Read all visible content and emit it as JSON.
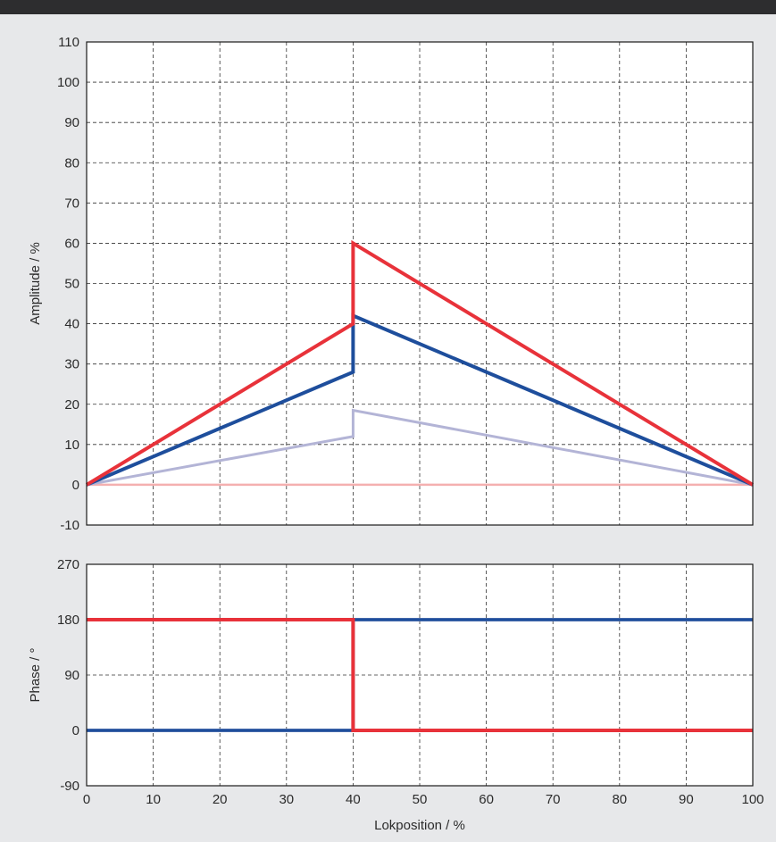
{
  "chart_data": [
    {
      "type": "line",
      "xlabel": "",
      "ylabel": "Amplitude / %",
      "xlim": [
        0,
        100
      ],
      "ylim": [
        -10,
        110
      ],
      "xticks": [
        0,
        10,
        20,
        30,
        40,
        50,
        60,
        70,
        80,
        90,
        100
      ],
      "yticks": [
        -10,
        0,
        10,
        20,
        30,
        40,
        50,
        60,
        70,
        80,
        90,
        100,
        110
      ],
      "grid": true,
      "series": [
        {
          "color": "#f4b0b0",
          "points": [
            [
              0,
              0
            ],
            [
              100,
              0
            ]
          ]
        },
        {
          "color": "#b3b4d6",
          "points": [
            [
              0,
              0
            ],
            [
              40,
              12
            ],
            [
              40,
              18.5
            ],
            [
              100,
              0
            ]
          ]
        },
        {
          "color": "#1e4e9c",
          "points": [
            [
              0,
              0
            ],
            [
              40,
              28
            ],
            [
              40,
              42
            ],
            [
              100,
              0
            ]
          ]
        },
        {
          "color": "#e8323a",
          "points": [
            [
              0,
              0
            ],
            [
              40,
              40
            ],
            [
              40,
              60
            ],
            [
              100,
              0
            ]
          ]
        }
      ]
    },
    {
      "type": "line",
      "xlabel": "Lokposition / %",
      "ylabel": "Phase / °",
      "xlim": [
        0,
        100
      ],
      "ylim": [
        -90,
        270
      ],
      "xticks": [
        0,
        10,
        20,
        30,
        40,
        50,
        60,
        70,
        80,
        90,
        100
      ],
      "yticks": [
        -90,
        0,
        90,
        180,
        270
      ],
      "grid": true,
      "series": [
        {
          "color": "#b3b4d6",
          "points": [
            [
              0,
              0
            ],
            [
              40,
              0
            ],
            [
              40,
              180
            ],
            [
              100,
              180
            ]
          ]
        },
        {
          "color": "#1e4e9c",
          "points": [
            [
              0,
              0
            ],
            [
              40,
              0
            ],
            [
              40,
              180
            ],
            [
              100,
              180
            ]
          ]
        },
        {
          "color": "#e8323a",
          "points": [
            [
              0,
              180
            ],
            [
              40,
              180
            ],
            [
              40,
              0
            ],
            [
              100,
              0
            ]
          ]
        }
      ]
    }
  ]
}
